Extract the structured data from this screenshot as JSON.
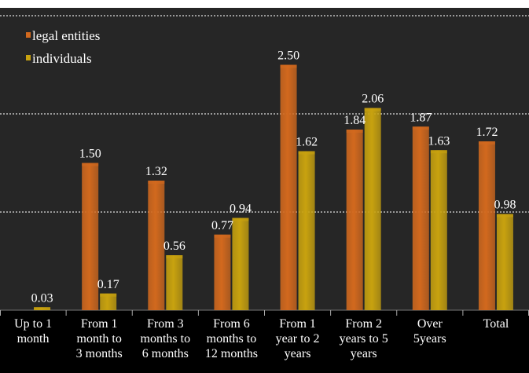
{
  "chart_data": {
    "type": "bar",
    "categories": [
      [
        "Up to 1",
        "month"
      ],
      [
        "From 1",
        "month to",
        "3 months"
      ],
      [
        "From 3",
        "months to",
        "6 months"
      ],
      [
        "From 6",
        "months to",
        "12 months"
      ],
      [
        "From 1",
        "year to 2",
        "years"
      ],
      [
        "From 2",
        "years to 5",
        "years"
      ],
      [
        "Over",
        "5years"
      ],
      [
        "Total"
      ]
    ],
    "series": [
      {
        "name": "legal entities",
        "color": "#d2691e",
        "values": [
          null,
          1.5,
          1.32,
          0.77,
          2.5,
          1.84,
          1.87,
          1.72
        ],
        "labels": [
          "",
          "1.50",
          "1.32",
          "0.77",
          "2.50",
          "1.84",
          "1.87",
          "1.72"
        ]
      },
      {
        "name": "individuals",
        "color": "#c8a20f",
        "values": [
          0.03,
          0.17,
          0.56,
          0.94,
          1.62,
          2.06,
          1.63,
          0.98
        ],
        "labels": [
          "0.03",
          "0.17",
          "0.56",
          "0.94",
          "1.62",
          "2.06",
          "1.63",
          "0.98"
        ]
      }
    ],
    "ylim": [
      0,
      3
    ],
    "gridlines": [
      1,
      2,
      3
    ],
    "legend_position": "top-left",
    "background_color": "#262626",
    "axis_background_color": "#000000"
  }
}
